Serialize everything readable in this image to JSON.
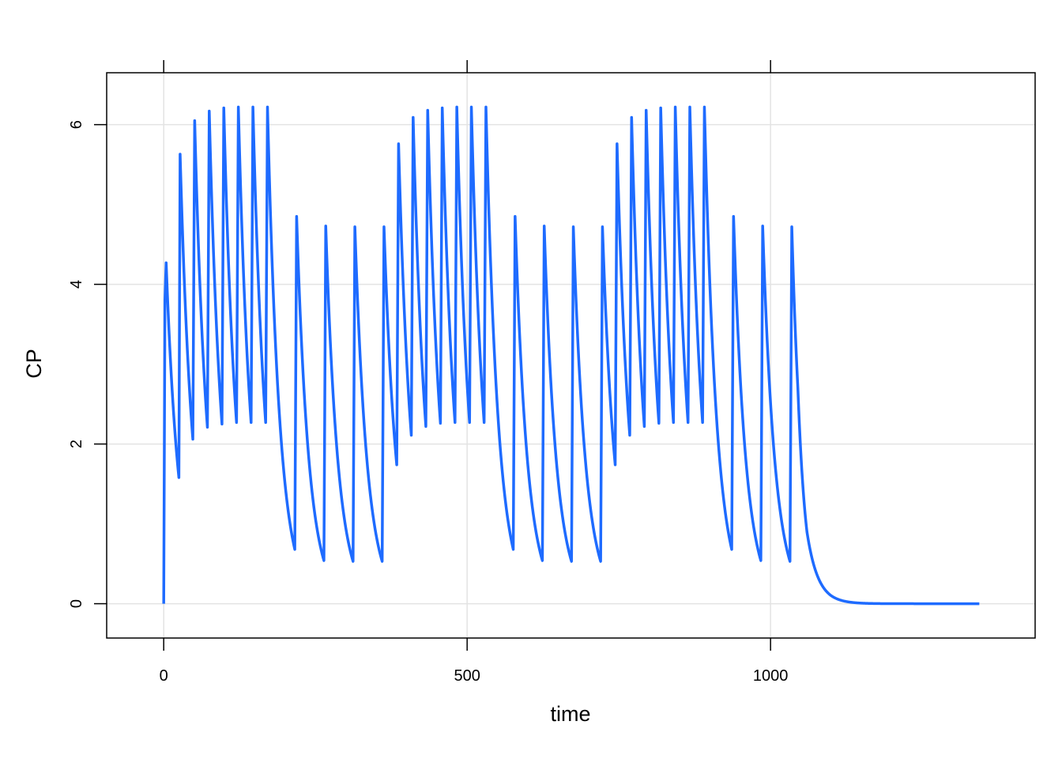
{
  "chart_data": {
    "type": "line",
    "xlabel": "time",
    "ylabel": "CP",
    "xlim": [
      -94,
      1436
    ],
    "ylim": [
      -0.43,
      6.65
    ],
    "x_ticks": [
      0,
      500,
      1000
    ],
    "y_ticks": [
      0,
      2,
      4,
      6
    ],
    "x_tick_labels": [
      "0",
      "500",
      "1000"
    ],
    "y_tick_labels": [
      "0",
      "2",
      "4",
      "6"
    ],
    "grid": true,
    "line_color": "#1E6BFF",
    "series": [
      {
        "x": [
          0,
          2,
          4,
          25,
          27,
          48,
          51,
          72,
          75,
          96,
          99,
          120,
          123,
          144,
          147,
          168,
          171,
          216,
          219,
          264,
          267,
          312,
          315,
          360,
          363,
          384,
          387,
          408,
          411,
          432,
          435,
          456,
          459,
          480,
          483,
          504,
          507,
          528,
          531,
          576,
          579,
          624,
          627,
          672,
          675,
          720,
          723,
          744,
          747,
          768,
          771,
          792,
          795,
          816,
          819,
          840,
          843,
          864,
          867,
          888,
          891,
          936,
          939,
          984,
          987,
          1032,
          1035,
          1045,
          1060,
          1080,
          1100,
          1120,
          1140,
          1160,
          1200,
          1250,
          1300,
          1344
        ],
        "y": [
          0,
          3.8,
          4.27,
          1.58,
          5.63,
          2.06,
          6.05,
          2.21,
          6.17,
          2.25,
          6.21,
          2.27,
          6.22,
          2.27,
          6.22,
          2.27,
          6.22,
          0.68,
          4.85,
          0.54,
          4.73,
          0.53,
          4.72,
          0.53,
          4.72,
          1.74,
          5.76,
          2.11,
          6.09,
          2.22,
          6.18,
          2.26,
          6.21,
          2.27,
          6.22,
          2.27,
          6.22,
          2.27,
          6.22,
          0.68,
          4.85,
          0.54,
          4.73,
          0.53,
          4.72,
          0.53,
          4.72,
          1.74,
          5.76,
          2.11,
          6.09,
          2.22,
          6.18,
          2.26,
          6.21,
          2.27,
          6.22,
          2.27,
          6.22,
          2.27,
          6.22,
          0.68,
          4.85,
          0.54,
          4.73,
          0.53,
          4.72,
          2.7,
          0.9,
          0.3,
          0.1,
          0.035,
          0.012,
          0.004,
          0.0005,
          5e-05,
          1e-05,
          0
        ]
      }
    ]
  }
}
